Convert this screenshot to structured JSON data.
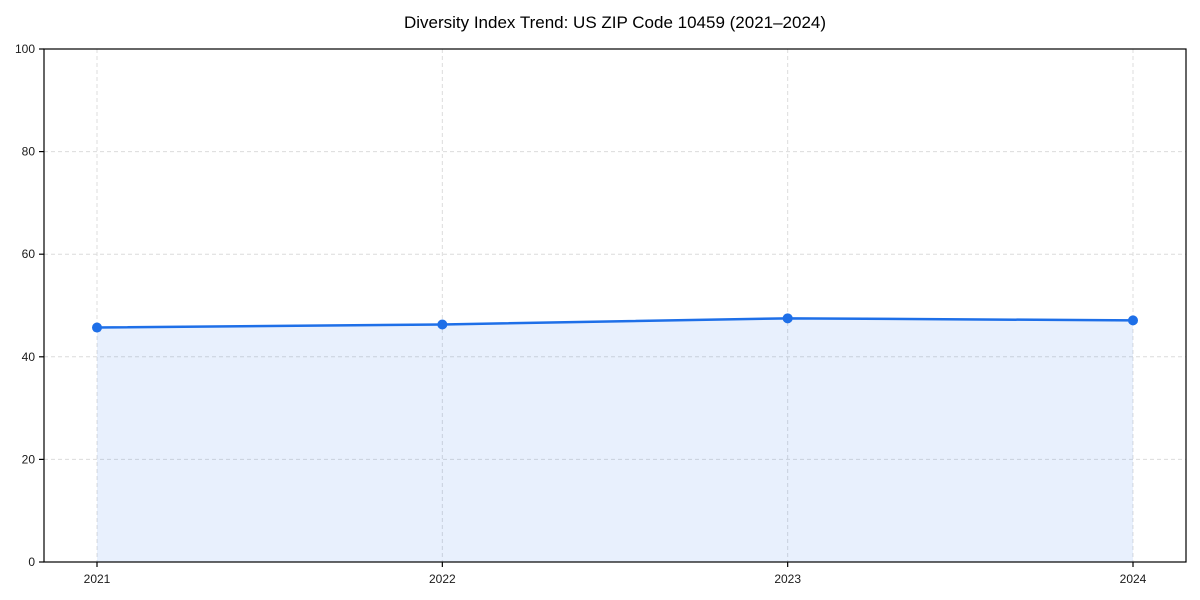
{
  "figure": {
    "background": "#ffffff"
  },
  "chart_data": {
    "type": "line",
    "title": "Diversity Index Trend: US ZIP Code 10459 (2021–2024)",
    "x": [
      "2021",
      "2022",
      "2023",
      "2024"
    ],
    "values": [
      45.7,
      46.3,
      47.5,
      47.1
    ],
    "xlabel": "",
    "ylabel": "",
    "ylim": [
      0,
      100
    ],
    "yticks": [
      0,
      20,
      40,
      60,
      80,
      100
    ],
    "grid": "dashed",
    "area_fill_to_zero": true,
    "legend_position": "none",
    "colors": {
      "line": "#1e6fe8",
      "marker": "#1e6fe8",
      "area": "rgba(30,111,232,0.10)",
      "grid": "#dcdcdc",
      "spine": "#000000",
      "tick_label": "#1a1a1a",
      "title": "#000000"
    }
  }
}
